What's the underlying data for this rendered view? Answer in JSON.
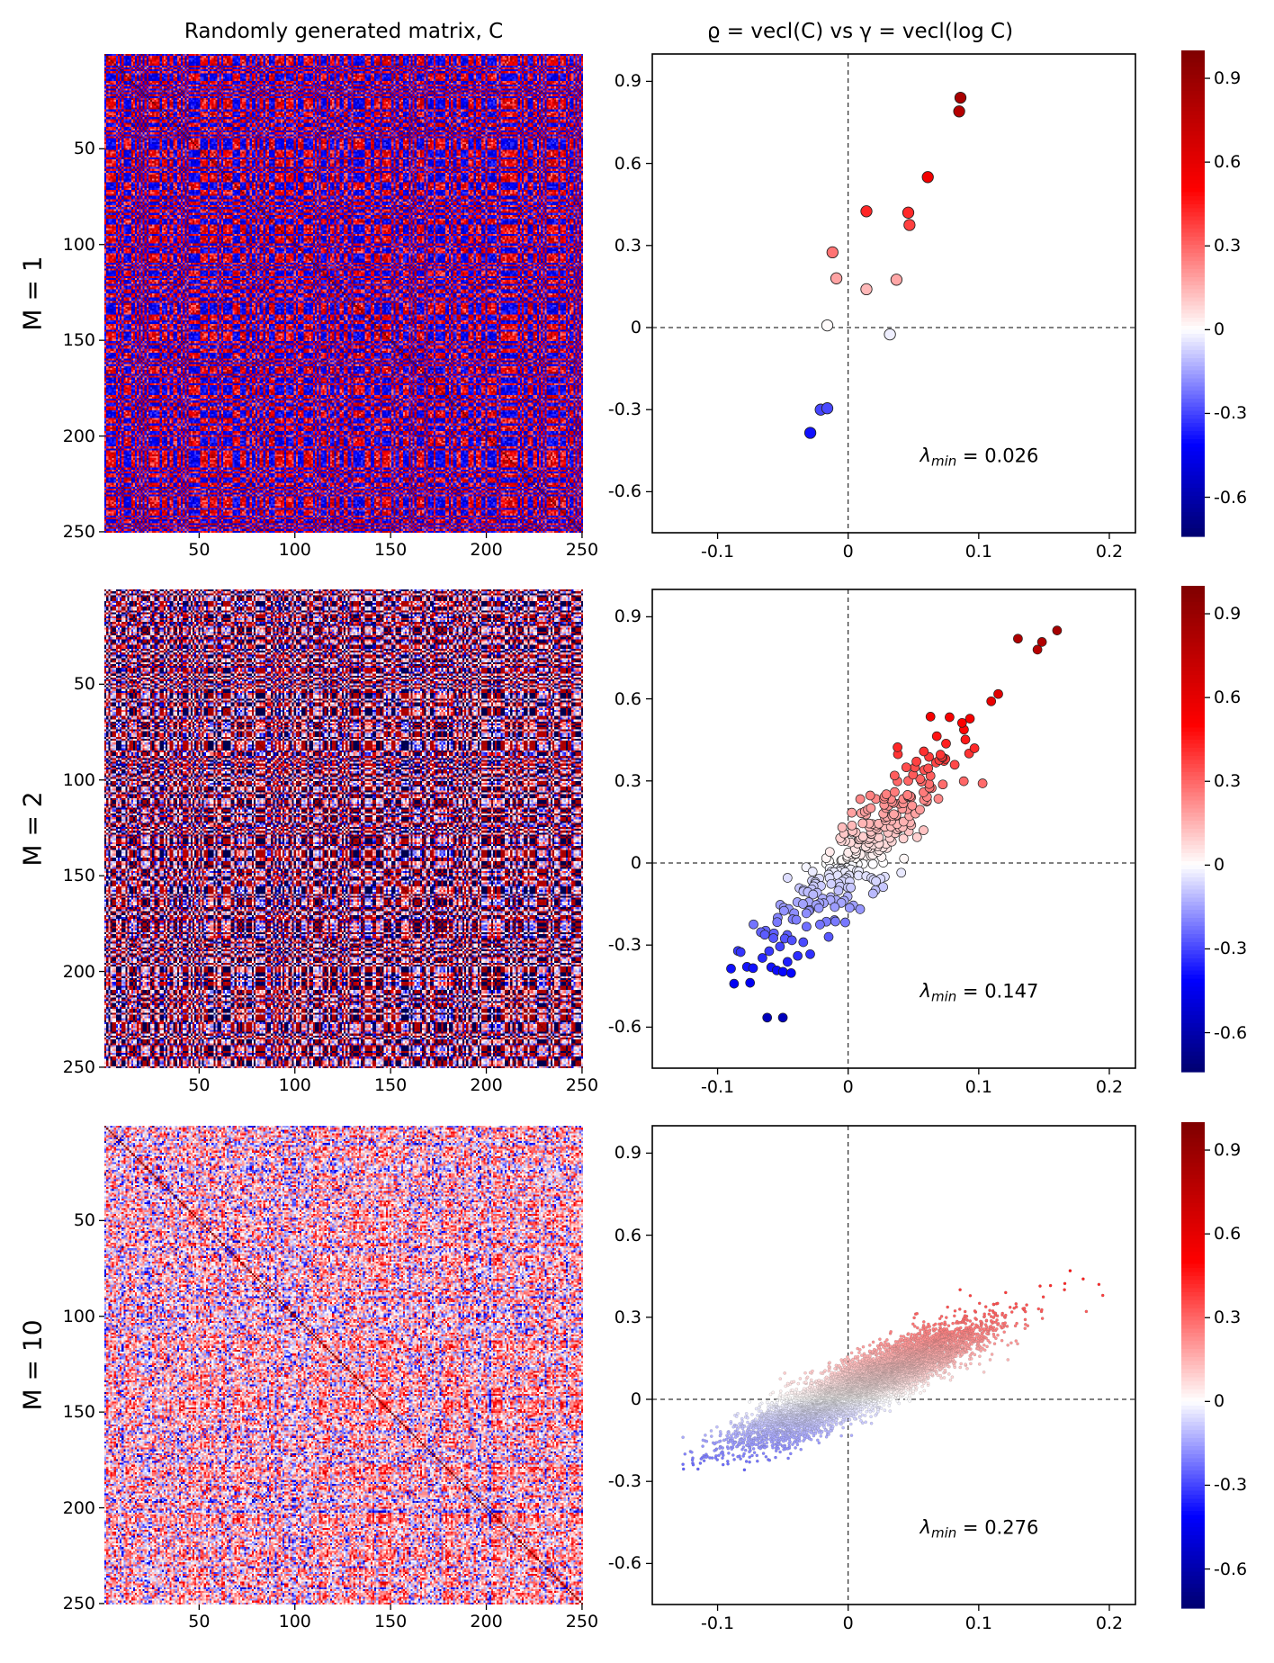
{
  "column_titles": {
    "left": "Randomly generated matrix, C",
    "right": "ϱ = vecl(C) vs γ = vecl(log C)"
  },
  "colormap": {
    "name": "seismic",
    "stops": [
      {
        "v": -1.0,
        "color": "#00004c"
      },
      {
        "v": -0.5,
        "color": "#0000ff"
      },
      {
        "v": 0.0,
        "color": "#ffffff"
      },
      {
        "v": 0.5,
        "color": "#ff0000"
      },
      {
        "v": 1.0,
        "color": "#7f0000"
      }
    ]
  },
  "chart_data": [
    {
      "type": "heatmap",
      "row_label": "M = 1",
      "title": "Randomly generated matrix, C",
      "size": 250,
      "x_ticks": [
        "50",
        "100",
        "150",
        "200",
        "250"
      ],
      "y_ticks": [
        "50",
        "100",
        "150",
        "200",
        "250"
      ],
      "x_tick_values": [
        50,
        100,
        150,
        200,
        250
      ],
      "y_tick_values": [
        50,
        100,
        150,
        200,
        250
      ],
      "diagonal_value": 1.0,
      "pattern": "strong block structure, values roughly -0.4..1.0",
      "seed": 11,
      "rank": 1
    },
    {
      "type": "scatter",
      "row_label": "M = 1",
      "title": "ϱ = vecl(C) vs γ = vecl(log C)",
      "xlim": [
        -0.15,
        0.22
      ],
      "ylim": [
        -0.75,
        1.0
      ],
      "x_ticks": [
        "-0.1",
        "0",
        "0.1",
        "0.2"
      ],
      "x_tick_values": [
        -0.1,
        0,
        0.1,
        0.2
      ],
      "y_ticks": [
        "0.9",
        "0.6",
        "0.3",
        "0",
        "-0.3",
        "-0.6"
      ],
      "y_tick_values": [
        0.9,
        0.6,
        0.3,
        0,
        -0.3,
        -0.6
      ],
      "reference_lines": {
        "x": 0,
        "y": 0,
        "style": "dashed"
      },
      "annotation": {
        "symbol": "λ",
        "subscript": "min",
        "text": " = 0.026",
        "value": 0.026
      },
      "marker": "large",
      "points": [
        {
          "x": 0.086,
          "y": 0.84
        },
        {
          "x": 0.085,
          "y": 0.79
        },
        {
          "x": 0.061,
          "y": 0.55
        },
        {
          "x": 0.014,
          "y": 0.425
        },
        {
          "x": 0.046,
          "y": 0.42
        },
        {
          "x": 0.047,
          "y": 0.375
        },
        {
          "x": -0.012,
          "y": 0.275
        },
        {
          "x": -0.009,
          "y": 0.18
        },
        {
          "x": 0.037,
          "y": 0.175
        },
        {
          "x": 0.014,
          "y": 0.14
        },
        {
          "x": -0.016,
          "y": 0.008
        },
        {
          "x": 0.032,
          "y": -0.025
        },
        {
          "x": -0.021,
          "y": -0.3
        },
        {
          "x": -0.016,
          "y": -0.295
        },
        {
          "x": -0.029,
          "y": -0.385
        }
      ]
    },
    {
      "type": "heatmap",
      "row_label": "M = 2",
      "size": 250,
      "x_ticks": [
        "50",
        "100",
        "150",
        "200",
        "250"
      ],
      "y_ticks": [
        "50",
        "100",
        "150",
        "200",
        "250"
      ],
      "x_tick_values": [
        50,
        100,
        150,
        200,
        250
      ],
      "y_tick_values": [
        50,
        100,
        150,
        200,
        250
      ],
      "diagonal_value": 1.0,
      "pattern": "finer block structure, values roughly -0.7..1.0",
      "seed": 23,
      "rank": 2
    },
    {
      "type": "scatter",
      "row_label": "M = 2",
      "xlim": [
        -0.15,
        0.22
      ],
      "ylim": [
        -0.75,
        1.0
      ],
      "x_ticks": [
        "-0.1",
        "0",
        "0.1",
        "0.2"
      ],
      "x_tick_values": [
        -0.1,
        0,
        0.1,
        0.2
      ],
      "y_ticks": [
        "0.9",
        "0.6",
        "0.3",
        "0",
        "-0.3",
        "-0.6"
      ],
      "y_tick_values": [
        0.9,
        0.6,
        0.3,
        0,
        -0.3,
        -0.6
      ],
      "reference_lines": {
        "x": 0,
        "y": 0,
        "style": "dashed"
      },
      "annotation": {
        "symbol": "λ",
        "subscript": "min",
        "text": " = 0.147",
        "value": 0.147
      },
      "marker": "medium",
      "cloud": {
        "n": 300,
        "slope": 4.6,
        "x_center": 0.005,
        "x_spread": 0.045,
        "y_noise": 0.09,
        "y_range": [
          -0.57,
          0.85
        ],
        "seed": 5
      },
      "outliers": [
        {
          "x": 0.16,
          "y": 0.85
        },
        {
          "x": 0.13,
          "y": 0.82
        },
        {
          "x": 0.145,
          "y": 0.78
        },
        {
          "x": -0.062,
          "y": -0.565
        },
        {
          "x": -0.05,
          "y": -0.565
        }
      ]
    },
    {
      "type": "heatmap",
      "row_label": "M = 10",
      "size": 250,
      "x_ticks": [
        "50",
        "100",
        "150",
        "200",
        "250"
      ],
      "y_ticks": [
        "50",
        "100",
        "150",
        "200",
        "250"
      ],
      "x_tick_values": [
        50,
        100,
        150,
        200,
        250
      ],
      "y_tick_values": [
        50,
        100,
        150,
        200,
        250
      ],
      "diagonal_value": 1.0,
      "pattern": "fine noise, values roughly -0.2..0.45",
      "seed": 37,
      "rank": 10
    },
    {
      "type": "scatter",
      "row_label": "M = 10",
      "xlim": [
        -0.15,
        0.22
      ],
      "ylim": [
        -0.75,
        1.0
      ],
      "x_ticks": [
        "-0.1",
        "0",
        "0.1",
        "0.2"
      ],
      "x_tick_values": [
        -0.1,
        0,
        0.1,
        0.2
      ],
      "y_ticks": [
        "0.9",
        "0.6",
        "0.3",
        "0",
        "-0.3",
        "-0.6"
      ],
      "y_tick_values": [
        0.9,
        0.6,
        0.3,
        0,
        -0.3,
        -0.6
      ],
      "reference_lines": {
        "x": 0,
        "y": 0,
        "style": "dashed"
      },
      "annotation": {
        "symbol": "λ",
        "subscript": "min",
        "text": " = 0.276",
        "value": 0.276
      },
      "marker": "small",
      "cloud": {
        "n": 9000,
        "slope": 2.15,
        "x_center": 0.01,
        "x_spread": 0.042,
        "y_noise": 0.045,
        "y_range": [
          -0.26,
          0.47
        ],
        "seed": 9
      },
      "outliers": [
        {
          "x": 0.195,
          "y": 0.38
        },
        {
          "x": 0.192,
          "y": 0.42
        },
        {
          "x": 0.18,
          "y": 0.44
        },
        {
          "x": 0.17,
          "y": 0.47
        },
        {
          "x": -0.125,
          "y": -0.2
        },
        {
          "x": -0.115,
          "y": -0.255
        }
      ]
    }
  ],
  "colorbar": {
    "range": [
      -0.74,
      1.0
    ],
    "ticks": [
      "0.9",
      "0.6",
      "0.3",
      "0",
      "-0.3",
      "-0.6"
    ],
    "tick_values": [
      0.9,
      0.6,
      0.3,
      0,
      -0.3,
      -0.6
    ]
  }
}
